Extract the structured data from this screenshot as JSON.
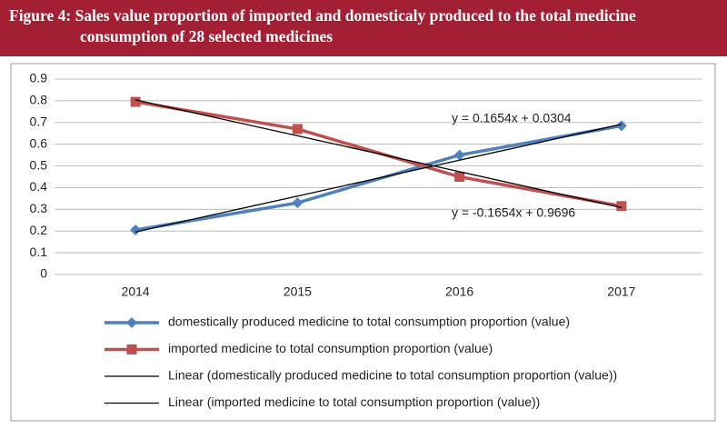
{
  "chart_data": {
    "type": "line",
    "title": "Figure 4: Sales value proportion of imported and domesticaly produced to the total medicine consumption of 28 selected medicines",
    "categories": [
      "2014",
      "2015",
      "2016",
      "2017"
    ],
    "series": [
      {
        "name": "domestically produced medicine to total consumption proportion (value)",
        "color": "#4f81bd",
        "marker": "diamond",
        "values": [
          0.205,
          0.33,
          0.55,
          0.685
        ]
      },
      {
        "name": "imported medicine to total consumption proportion (value)",
        "color": "#c0504d",
        "marker": "square",
        "values": [
          0.795,
          0.67,
          0.45,
          0.315
        ]
      },
      {
        "name": "Linear (domestically produced medicine to total consumption proportion (value))",
        "color": "#000000",
        "values": [
          0.1958,
          0.3612,
          0.5266,
          0.692
        ]
      },
      {
        "name": "Linear (imported medicine to total consumption proportion (value))",
        "color": "#000000",
        "values": [
          0.8042,
          0.6388,
          0.4734,
          0.308
        ]
      }
    ],
    "annotations": [
      "y = 0.1654x + 0.0304",
      "y = -0.1654x + 0.9696"
    ],
    "ylim": [
      0,
      0.9
    ],
    "yticks": [
      0,
      0.1,
      0.2,
      0.3,
      0.4,
      0.5,
      0.6,
      0.7,
      0.8,
      0.9
    ],
    "grid": true,
    "legend": "bottom"
  }
}
